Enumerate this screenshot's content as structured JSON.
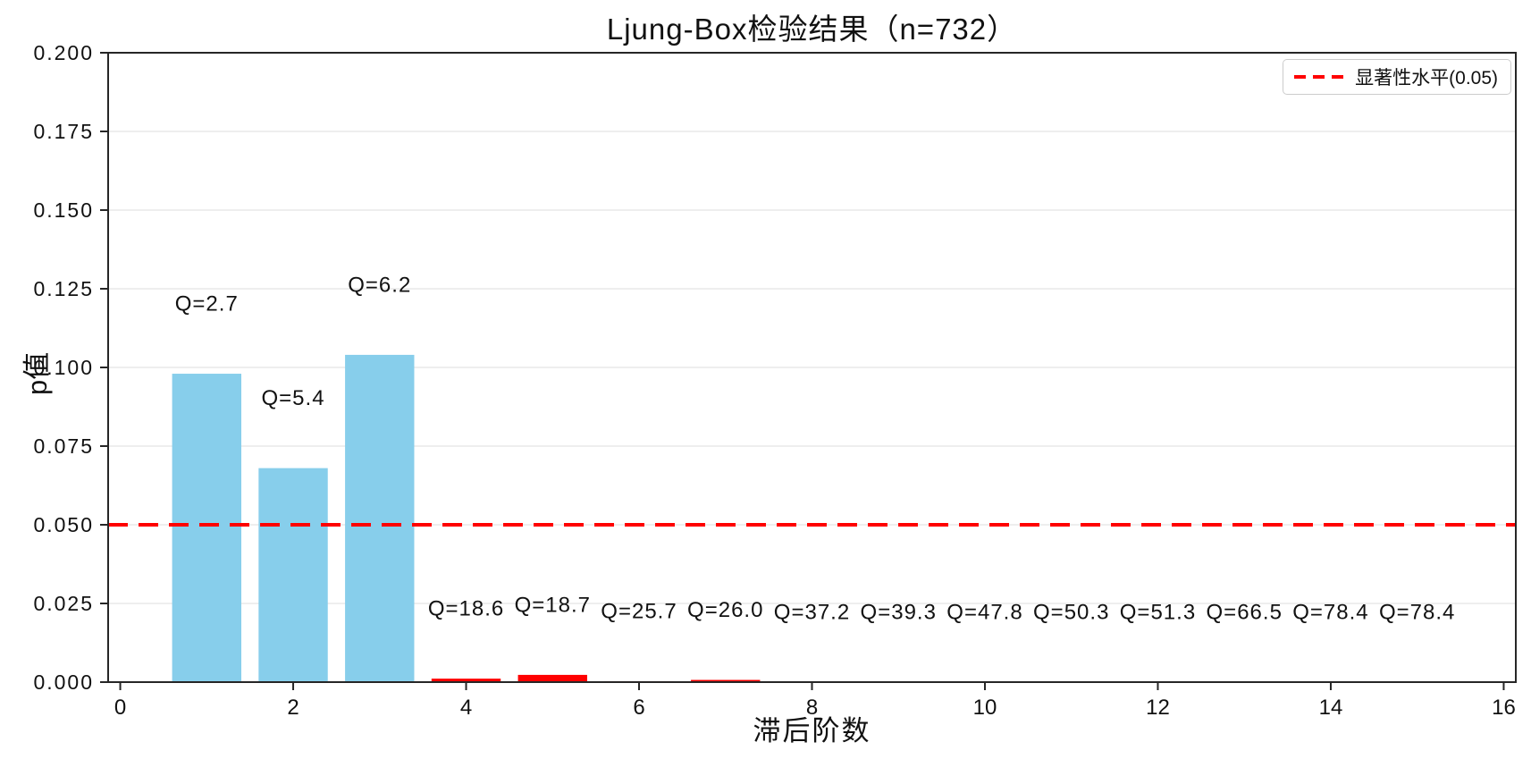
{
  "chart_data": {
    "type": "bar",
    "title": "Ljung-Box检验结果（n=732）",
    "xlabel": "滞后阶数",
    "ylabel": "p值",
    "xlim": [
      -0.14,
      16.14
    ],
    "ylim": [
      0.0,
      0.2
    ],
    "grid": "horizontal only, light gray",
    "bar_width": 0.8,
    "x_ticks": [
      {
        "value": 0,
        "label": "0"
      },
      {
        "value": 2,
        "label": "2"
      },
      {
        "value": 4,
        "label": "4"
      },
      {
        "value": 6,
        "label": "6"
      },
      {
        "value": 8,
        "label": "8"
      },
      {
        "value": 10,
        "label": "10"
      },
      {
        "value": 12,
        "label": "12"
      },
      {
        "value": 14,
        "label": "14"
      },
      {
        "value": 16,
        "label": "16"
      }
    ],
    "y_ticks": [
      {
        "value": 0.0,
        "label": "0.000"
      },
      {
        "value": 0.025,
        "label": "0.025"
      },
      {
        "value": 0.05,
        "label": "0.050"
      },
      {
        "value": 0.075,
        "label": "0.075"
      },
      {
        "value": 0.1,
        "label": "0.100"
      },
      {
        "value": 0.125,
        "label": "0.125"
      },
      {
        "value": 0.15,
        "label": "0.150"
      },
      {
        "value": 0.175,
        "label": "0.175"
      },
      {
        "value": 0.2,
        "label": "0.200"
      }
    ],
    "bars": [
      {
        "lag": 1,
        "p_value": 0.098,
        "q_label": "Q=2.7",
        "color": "#87CEEB"
      },
      {
        "lag": 2,
        "p_value": 0.068,
        "q_label": "Q=5.4",
        "color": "#87CEEB"
      },
      {
        "lag": 3,
        "p_value": 0.104,
        "q_label": "Q=6.2",
        "color": "#87CEEB"
      },
      {
        "lag": 4,
        "p_value": 0.0011,
        "q_label": "Q=18.6",
        "color": "#FF0000"
      },
      {
        "lag": 5,
        "p_value": 0.0023,
        "q_label": "Q=18.7",
        "color": "#FF0000"
      },
      {
        "lag": 6,
        "p_value": 0.0003,
        "q_label": "Q=25.7",
        "color": "#FF0000"
      },
      {
        "lag": 7,
        "p_value": 0.0007,
        "q_label": "Q=26.0",
        "color": "#FF0000"
      },
      {
        "lag": 8,
        "p_value": 2e-05,
        "q_label": "Q=37.2",
        "color": "#FF0000"
      },
      {
        "lag": 9,
        "p_value": 2e-05,
        "q_label": "Q=39.3",
        "color": "#FF0000"
      },
      {
        "lag": 10,
        "p_value": 0.0,
        "q_label": "Q=47.8",
        "color": "#FF0000"
      },
      {
        "lag": 11,
        "p_value": 0.0,
        "q_label": "Q=50.3",
        "color": "#FF0000"
      },
      {
        "lag": 12,
        "p_value": 0.0,
        "q_label": "Q=51.3",
        "color": "#FF0000"
      },
      {
        "lag": 13,
        "p_value": 0.0,
        "q_label": "Q=66.5",
        "color": "#FF0000"
      },
      {
        "lag": 14,
        "p_value": 0.0,
        "q_label": "Q=78.4",
        "color": "#FF0000"
      },
      {
        "lag": 15,
        "p_value": 0.0,
        "q_label": "Q=78.4",
        "color": "#FF0000"
      }
    ],
    "annotation_offset": 0.02,
    "significance_line": {
      "value": 0.05,
      "label": "显著性水平(0.05)",
      "color": "#FF0000",
      "style": "dashed"
    },
    "legend_position": "upper right",
    "colors": {
      "not_significant_bar": "#87CEEB",
      "significant_bar": "#FF0000",
      "gridline": "#E8E8E8",
      "spine": "#262626",
      "text": "#111111"
    }
  }
}
